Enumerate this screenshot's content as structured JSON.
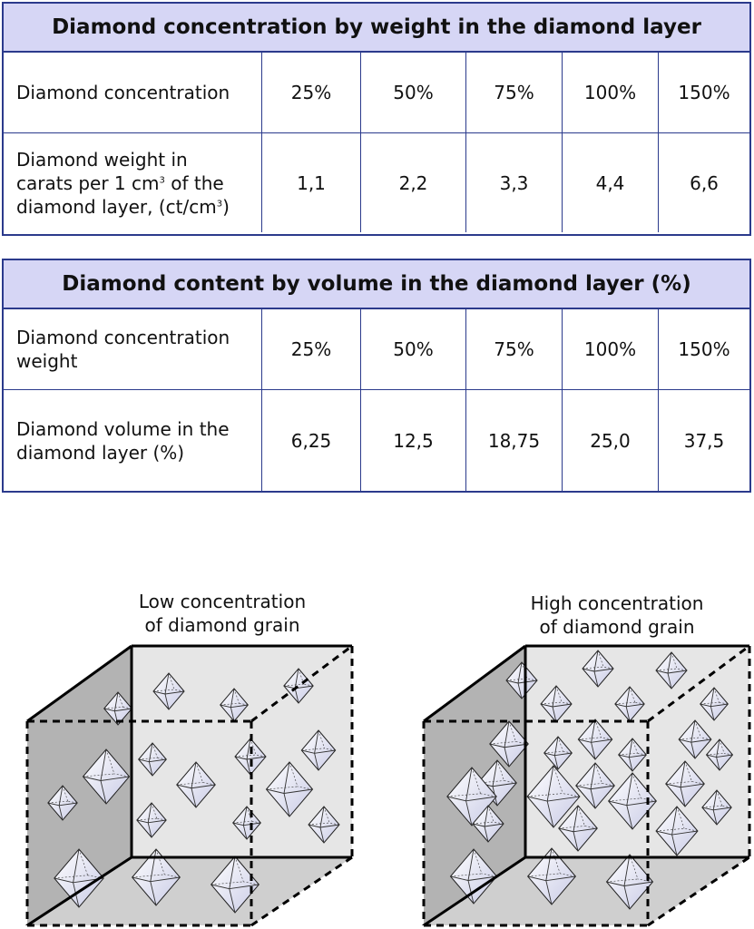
{
  "table_weight": {
    "title": "Diamond concentration by weight in the diamond layer",
    "row1_label": "Diamond concentration",
    "row1_values": [
      "25%",
      "50%",
      "75%",
      "100%",
      "150%"
    ],
    "row2_label_line1": "Diamond weight in",
    "row2_label_line2_pre": "carats per 1 cm",
    "row2_label_sup": "3",
    "row2_label_line2_post": " of the",
    "row2_label_line3_pre": "diamond layer, (ct/cm",
    "row2_label_line3_post": ")",
    "row2_values": [
      "1,1",
      "2,2",
      "3,3",
      "4,4",
      "6,6"
    ]
  },
  "table_volume": {
    "title": "Diamond content by volume in the diamond layer (%)",
    "row1_label_line1": "Diamond concentration",
    "row1_label_line2": "weight",
    "row1_values": [
      "25%",
      "50%",
      "75%",
      "100%",
      "150%"
    ],
    "row2_label_line1": "Diamond volume in the",
    "row2_label_line2": "diamond layer (%)",
    "row2_values": [
      "6,25",
      "12,5",
      "18,75",
      "25,0",
      "37,5"
    ]
  },
  "cube_low": {
    "title_line1": "Low concentration",
    "title_line2": "of diamond grain"
  },
  "cube_high": {
    "title_line1": "High concentration",
    "title_line2": "of diamond grain"
  },
  "colors": {
    "border": "#2b3a8c",
    "header_bg": "#d6d6f5",
    "cube_dark": "#b3b3b3",
    "cube_light": "#e6e6e6"
  }
}
